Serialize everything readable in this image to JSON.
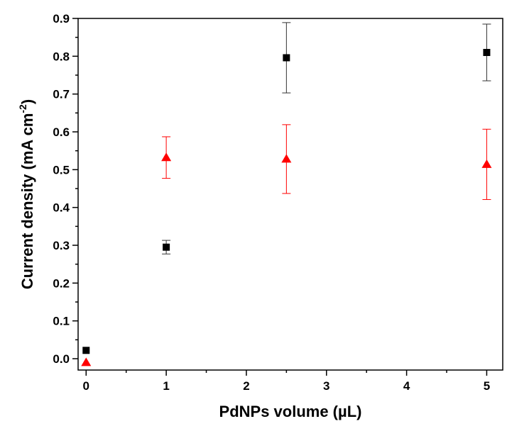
{
  "chart_data": {
    "type": "scatter",
    "title": "",
    "xlabel": "PdNPs volume (µL)",
    "ylabel": {
      "main": "Current density (mA cm",
      "superscript": "-2",
      "suffix": ")"
    },
    "xlim": [
      -0.1,
      5.2
    ],
    "ylim": [
      -0.03,
      0.9
    ],
    "x_ticks": [
      0,
      1,
      2,
      3,
      4,
      5
    ],
    "x_tick_labels": [
      "0",
      "1",
      "2",
      "3",
      "4",
      "5"
    ],
    "y_ticks": [
      0.0,
      0.1,
      0.2,
      0.3,
      0.4,
      0.5,
      0.6,
      0.7,
      0.8,
      0.9
    ],
    "y_tick_labels": [
      "0.0",
      "0.1",
      "0.2",
      "0.3",
      "0.4",
      "0.5",
      "0.6",
      "0.7",
      "0.8",
      "0.9"
    ],
    "grid": false,
    "legend": "none",
    "series": [
      {
        "marker": "square",
        "color": "#000000",
        "points": [
          {
            "x": 0,
            "y": 0.022,
            "err": 0
          },
          {
            "x": 1,
            "y": 0.295,
            "err": 0.018
          },
          {
            "x": 2.5,
            "y": 0.796,
            "err": 0.093
          },
          {
            "x": 5,
            "y": 0.81,
            "err": 0.075
          }
        ]
      },
      {
        "marker": "triangle",
        "color": "#ff0000",
        "points": [
          {
            "x": 0,
            "y": -0.01,
            "err": 0
          },
          {
            "x": 1,
            "y": 0.532,
            "err": 0.055
          },
          {
            "x": 2.5,
            "y": 0.528,
            "err": 0.091
          },
          {
            "x": 5,
            "y": 0.514,
            "err": 0.093
          }
        ]
      }
    ]
  }
}
